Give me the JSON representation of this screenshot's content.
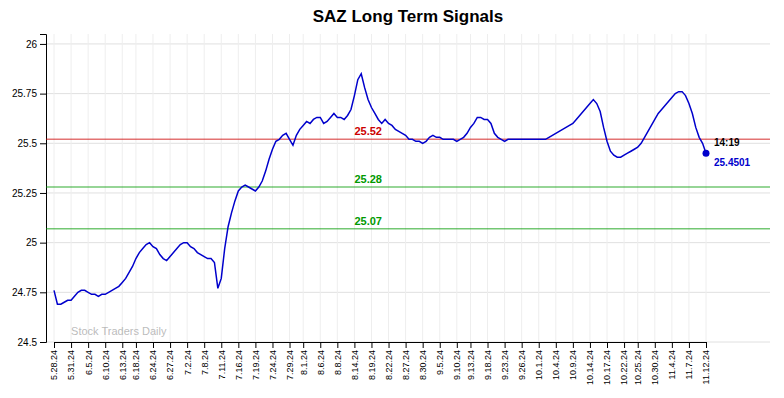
{
  "chart_data": {
    "type": "line",
    "title": "SAZ Long Term Signals",
    "color": "#0000cc",
    "grid": true,
    "ylim": [
      24.5,
      26.05
    ],
    "yticks": [
      24.5,
      24.75,
      25,
      25.25,
      25.5,
      25.75,
      26
    ],
    "categories": [
      "5.28.24",
      null,
      null,
      null,
      null,
      "5.31.24",
      null,
      null,
      null,
      null,
      "6.5.24",
      null,
      null,
      null,
      null,
      "6.10.24",
      null,
      null,
      null,
      null,
      "6.13.24",
      null,
      null,
      null,
      "6.18.24",
      null,
      null,
      null,
      null,
      "6.24.24",
      null,
      null,
      null,
      null,
      "6.27.24",
      null,
      null,
      null,
      null,
      "7.2.24",
      null,
      null,
      null,
      null,
      "7.8.24",
      null,
      null,
      null,
      null,
      "7.11.24",
      null,
      null,
      null,
      null,
      "7.16.24",
      null,
      null,
      null,
      null,
      "7.19.24",
      null,
      null,
      null,
      null,
      "7.24.24",
      null,
      null,
      null,
      null,
      "7.29.24",
      null,
      null,
      null,
      "8.1.24",
      null,
      null,
      null,
      null,
      "8.6.24",
      null,
      null,
      null,
      null,
      "8.8.24",
      null,
      null,
      null,
      null,
      "8.14.24",
      null,
      null,
      null,
      null,
      "8.19.24",
      null,
      null,
      null,
      null,
      "8.22.24",
      null,
      null,
      null,
      null,
      "8.27.24",
      null,
      null,
      null,
      null,
      "8.30.24",
      null,
      null,
      null,
      null,
      "9.5.24",
      null,
      null,
      null,
      null,
      "9.10.24",
      null,
      null,
      null,
      "9.13.24",
      null,
      null,
      null,
      null,
      "9.18.24",
      null,
      null,
      null,
      null,
      "9.23.24",
      null,
      null,
      null,
      null,
      "9.26.24",
      null,
      null,
      null,
      null,
      "10.1.24",
      null,
      null,
      null,
      null,
      "10.4.24",
      null,
      null,
      null,
      null,
      "10.9.24",
      null,
      null,
      null,
      null,
      "10.14.24",
      null,
      null,
      null,
      null,
      "10.17.24",
      null,
      null,
      null,
      null,
      "10.22.24",
      null,
      null,
      null,
      "10.25.24",
      null,
      null,
      null,
      null,
      "10.30.24",
      null,
      null,
      null,
      null,
      "11.4.24",
      null,
      null,
      null,
      null,
      "11.7.24",
      null,
      null,
      null,
      null,
      "11.12.24"
    ],
    "values": [
      24.76,
      24.69,
      24.69,
      24.7,
      24.71,
      24.71,
      24.73,
      24.75,
      24.76,
      24.76,
      24.75,
      24.74,
      24.74,
      24.73,
      24.74,
      24.74,
      24.75,
      24.76,
      24.77,
      24.78,
      24.8,
      24.82,
      24.85,
      24.88,
      24.92,
      24.95,
      24.97,
      24.99,
      25.0,
      24.98,
      24.97,
      24.94,
      24.92,
      24.91,
      24.93,
      24.95,
      24.97,
      24.99,
      25.0,
      25.0,
      24.98,
      24.97,
      24.95,
      24.94,
      24.93,
      24.92,
      24.92,
      24.9,
      24.77,
      24.82,
      24.97,
      25.08,
      25.15,
      25.21,
      25.26,
      25.28,
      25.29,
      25.28,
      25.27,
      25.26,
      25.28,
      25.31,
      25.36,
      25.42,
      25.47,
      25.51,
      25.52,
      25.54,
      25.55,
      25.52,
      25.49,
      25.54,
      25.57,
      25.59,
      25.61,
      25.6,
      25.62,
      25.63,
      25.63,
      25.6,
      25.61,
      25.63,
      25.65,
      25.63,
      25.63,
      25.62,
      25.64,
      25.67,
      25.74,
      25.82,
      25.85,
      25.78,
      25.72,
      25.68,
      25.65,
      25.62,
      25.6,
      25.62,
      25.6,
      25.59,
      25.57,
      25.56,
      25.55,
      25.54,
      25.52,
      25.52,
      25.51,
      25.51,
      25.5,
      25.51,
      25.53,
      25.54,
      25.53,
      25.53,
      25.52,
      25.52,
      25.52,
      25.52,
      25.51,
      25.52,
      25.53,
      25.55,
      25.58,
      25.6,
      25.63,
      25.63,
      25.62,
      25.62,
      25.6,
      25.55,
      25.53,
      25.52,
      25.51,
      25.52,
      25.52,
      25.52,
      25.52,
      25.52,
      25.52,
      25.52,
      25.52,
      25.52,
      25.52,
      25.52,
      25.52,
      25.53,
      25.54,
      25.55,
      25.56,
      25.57,
      25.58,
      25.59,
      25.6,
      25.62,
      25.64,
      25.66,
      25.68,
      25.7,
      25.72,
      25.7,
      25.66,
      25.58,
      25.51,
      25.46,
      25.44,
      25.43,
      25.43,
      25.44,
      25.45,
      25.46,
      25.47,
      25.48,
      25.5,
      25.53,
      25.56,
      25.59,
      25.62,
      25.65,
      25.67,
      25.69,
      25.71,
      25.73,
      25.75,
      25.76,
      25.76,
      25.74,
      25.7,
      25.65,
      25.58,
      25.53,
      25.5,
      25.4501
    ],
    "reference_lines": [
      {
        "value": 25.52,
        "color": "#cc0000"
      },
      {
        "value": 25.28,
        "color": "#009900"
      },
      {
        "value": 25.07,
        "color": "#009900"
      }
    ],
    "last_point": {
      "value": 25.4501,
      "time": "14:19",
      "color": "#0000cc"
    },
    "watermark": "Stock Traders Daily"
  }
}
